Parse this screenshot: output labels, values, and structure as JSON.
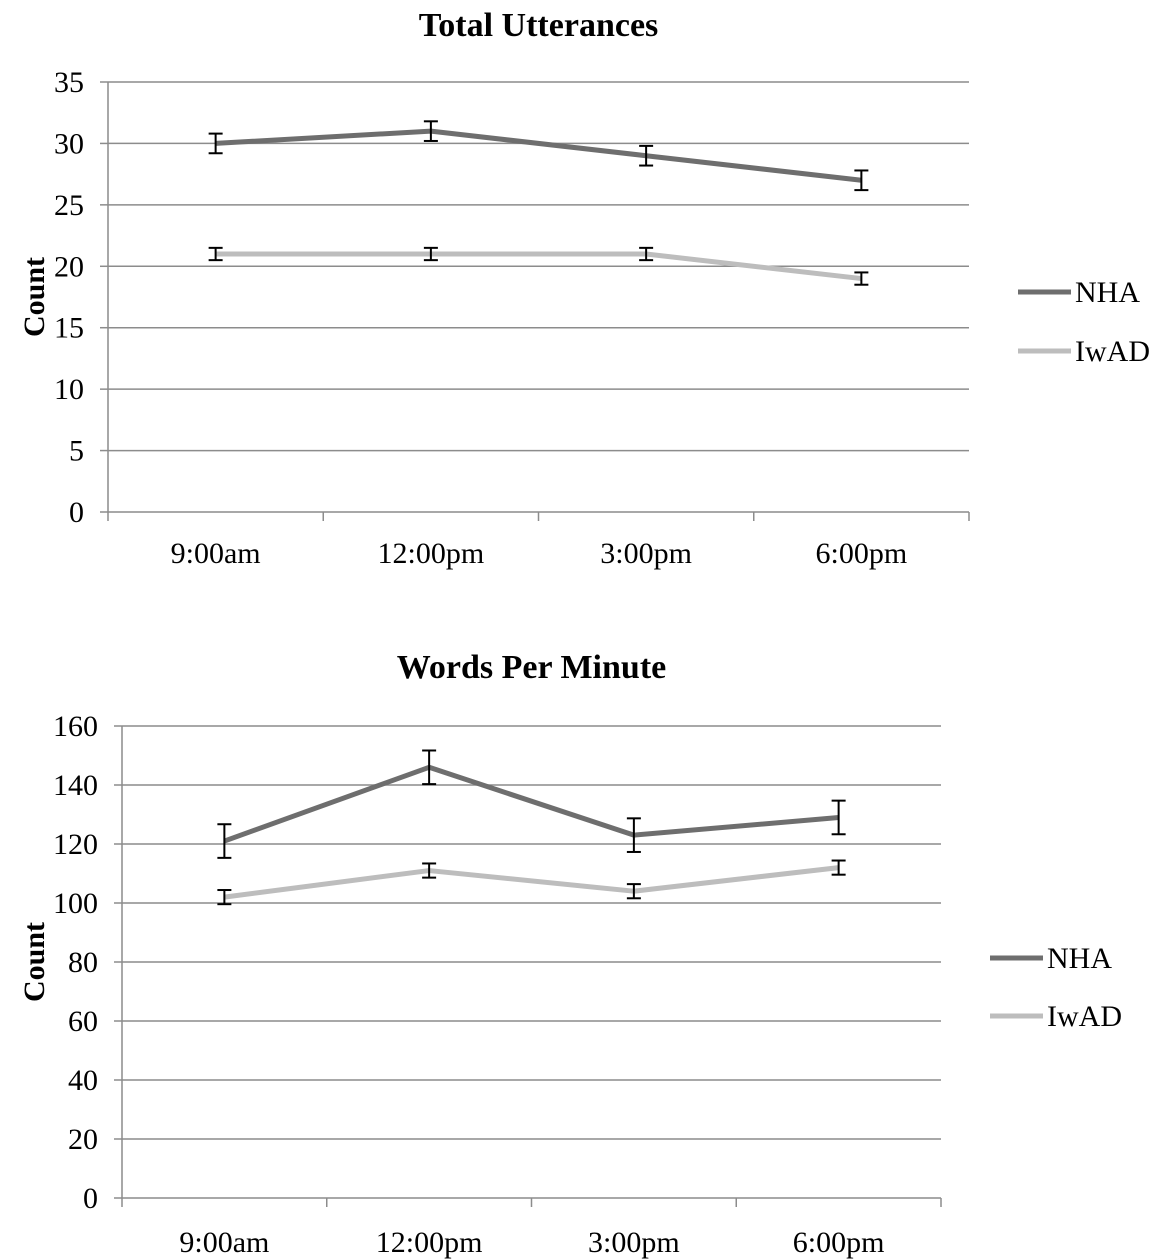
{
  "chart_data": [
    {
      "type": "line",
      "title": "Total Utterances",
      "xlabel": "",
      "ylabel": "Count",
      "categories": [
        "9:00am",
        "12:00pm",
        "3:00pm",
        "6:00pm"
      ],
      "ylim": [
        0,
        35
      ],
      "yticks": [
        0,
        5,
        10,
        15,
        20,
        25,
        30,
        35
      ],
      "grid": true,
      "legend": "right",
      "series": [
        {
          "name": "NHA",
          "color": "#6e6e6e",
          "values": [
            30,
            31,
            29,
            27
          ],
          "error": [
            0.8,
            0.8,
            0.8,
            0.8
          ]
        },
        {
          "name": "IwAD",
          "color": "#bdbdbd",
          "values": [
            21,
            21,
            21,
            19
          ],
          "error": [
            0.5,
            0.5,
            0.5,
            0.5
          ]
        }
      ]
    },
    {
      "type": "line",
      "title": "Words Per Minute",
      "xlabel": "",
      "ylabel": "Count",
      "categories": [
        "9:00am",
        "12:00pm",
        "3:00pm",
        "6:00pm"
      ],
      "ylim": [
        0,
        160
      ],
      "yticks": [
        0,
        20,
        40,
        60,
        80,
        100,
        120,
        140,
        160
      ],
      "grid": true,
      "legend": "right",
      "series": [
        {
          "name": "NHA",
          "color": "#6e6e6e",
          "values": [
            121,
            146,
            123,
            129
          ],
          "error": [
            5.7,
            5.7,
            5.7,
            5.7
          ]
        },
        {
          "name": "IwAD",
          "color": "#bdbdbd",
          "values": [
            102,
            111,
            104,
            112
          ],
          "error": [
            2.4,
            2.4,
            2.4,
            2.4
          ]
        }
      ]
    }
  ]
}
